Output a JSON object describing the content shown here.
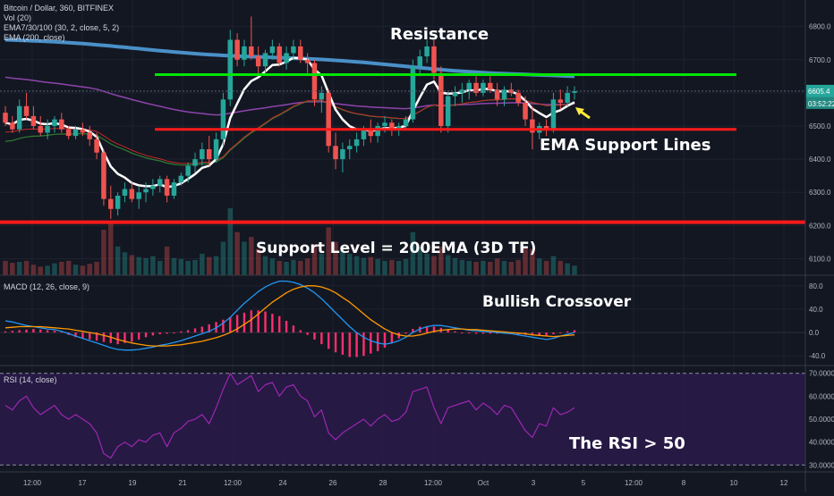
{
  "header": {
    "symbol_line": "Bitcoin / Dollar, 360, BITFINEX",
    "vol_line": "Vol (20)",
    "ema_ribbon_line": "EMA7/30/100 (30, 2, close, 5, 2)",
    "ema200_line": "EMA (200, close)"
  },
  "annotations": {
    "resistance": "Resistance",
    "ema_support": "EMA Support Lines",
    "support_level": "Support Level = 200EMA (3D TF)",
    "bullish_crossover": "Bullish Crossover",
    "rsi_note": "The RSI > 50"
  },
  "colors": {
    "background": "#131722",
    "up_candle": "#26a69a",
    "down_candle": "#ef5350",
    "resistance_line": "#00e600",
    "support_lines": "#ff1a1a",
    "ema200": "#4a90c8",
    "ema_white": "#ffffff",
    "ema_purple": "#8e44ad",
    "ema_green": "#2e7d32",
    "ema_red": "#c62828",
    "macd_line": "#2196f3",
    "signal_line": "#ff9800",
    "histogram": "#ff2e6e",
    "rsi_line": "#9c27b0",
    "rsi_band": "#2a1a4a",
    "arrow": "#ffeb3b",
    "price_tag": "#26a69a"
  },
  "chart_data": [
    {
      "type": "candlestick",
      "title": "Bitcoin / Dollar, 360, BITFINEX",
      "ylim": [
        6050,
        6880
      ],
      "yticks": [
        6100,
        6200,
        6300,
        6400,
        6500,
        6600,
        6700,
        6800
      ],
      "ytick_labels": [
        "6100.0",
        "6200.0",
        "6300.0",
        "6400.0",
        "6500.0",
        "6600.0",
        "6700.0",
        "6800.0"
      ],
      "last_price": "6605.4",
      "countdown": "03:52:22",
      "resistance_level": 6655,
      "ema_support_level": 6490,
      "support_level": 6210,
      "candles": [
        [
          6540,
          6560,
          6500,
          6510
        ],
        [
          6510,
          6530,
          6480,
          6490
        ],
        [
          6490,
          6580,
          6480,
          6560
        ],
        [
          6560,
          6600,
          6520,
          6530
        ],
        [
          6530,
          6560,
          6490,
          6500
        ],
        [
          6500,
          6530,
          6470,
          6480
        ],
        [
          6480,
          6520,
          6460,
          6500
        ],
        [
          6500,
          6530,
          6480,
          6520
        ],
        [
          6520,
          6540,
          6480,
          6490
        ],
        [
          6490,
          6500,
          6460,
          6470
        ],
        [
          6470,
          6500,
          6460,
          6490
        ],
        [
          6490,
          6510,
          6470,
          6480
        ],
        [
          6480,
          6500,
          6440,
          6460
        ],
        [
          6460,
          6480,
          6400,
          6420
        ],
        [
          6420,
          6430,
          6260,
          6280
        ],
        [
          6280,
          6320,
          6220,
          6250
        ],
        [
          6250,
          6300,
          6230,
          6290
        ],
        [
          6290,
          6330,
          6270,
          6310
        ],
        [
          6310,
          6330,
          6270,
          6280
        ],
        [
          6280,
          6320,
          6250,
          6300
        ],
        [
          6300,
          6330,
          6270,
          6310
        ],
        [
          6310,
          6340,
          6290,
          6320
        ],
        [
          6320,
          6350,
          6300,
          6340
        ],
        [
          6340,
          6350,
          6270,
          6290
        ],
        [
          6290,
          6340,
          6280,
          6330
        ],
        [
          6330,
          6360,
          6320,
          6350
        ],
        [
          6350,
          6390,
          6330,
          6380
        ],
        [
          6380,
          6420,
          6360,
          6400
        ],
        [
          6400,
          6450,
          6380,
          6430
        ],
        [
          6430,
          6470,
          6380,
          6400
        ],
        [
          6400,
          6480,
          6390,
          6460
        ],
        [
          6460,
          6600,
          6440,
          6580
        ],
        [
          6580,
          6790,
          6560,
          6760
        ],
        [
          6760,
          6780,
          6680,
          6700
        ],
        [
          6700,
          6760,
          6680,
          6740
        ],
        [
          6740,
          6830,
          6700,
          6710
        ],
        [
          6710,
          6740,
          6650,
          6680
        ],
        [
          6680,
          6730,
          6660,
          6720
        ],
        [
          6720,
          6760,
          6700,
          6740
        ],
        [
          6740,
          6750,
          6680,
          6690
        ],
        [
          6690,
          6740,
          6670,
          6720
        ],
        [
          6720,
          6760,
          6700,
          6740
        ],
        [
          6740,
          6760,
          6690,
          6700
        ],
        [
          6700,
          6720,
          6660,
          6690
        ],
        [
          6690,
          6700,
          6560,
          6580
        ],
        [
          6580,
          6620,
          6540,
          6600
        ],
        [
          6600,
          6610,
          6420,
          6440
        ],
        [
          6440,
          6480,
          6370,
          6400
        ],
        [
          6400,
          6450,
          6360,
          6430
        ],
        [
          6430,
          6460,
          6400,
          6440
        ],
        [
          6440,
          6480,
          6420,
          6460
        ],
        [
          6460,
          6500,
          6440,
          6490
        ],
        [
          6490,
          6520,
          6450,
          6470
        ],
        [
          6470,
          6510,
          6450,
          6500
        ],
        [
          6500,
          6530,
          6480,
          6510
        ],
        [
          6510,
          6520,
          6470,
          6490
        ],
        [
          6490,
          6510,
          6470,
          6500
        ],
        [
          6500,
          6530,
          6490,
          6520
        ],
        [
          6520,
          6700,
          6510,
          6680
        ],
        [
          6680,
          6730,
          6650,
          6710
        ],
        [
          6710,
          6760,
          6690,
          6740
        ],
        [
          6740,
          6760,
          6640,
          6660
        ],
        [
          6660,
          6680,
          6480,
          6500
        ],
        [
          6500,
          6600,
          6480,
          6590
        ],
        [
          6590,
          6620,
          6560,
          6600
        ],
        [
          6600,
          6630,
          6570,
          6610
        ],
        [
          6610,
          6640,
          6580,
          6630
        ],
        [
          6630,
          6650,
          6590,
          6600
        ],
        [
          6600,
          6640,
          6590,
          6630
        ],
        [
          6630,
          6650,
          6600,
          6610
        ],
        [
          6610,
          6630,
          6560,
          6580
        ],
        [
          6580,
          6620,
          6560,
          6610
        ],
        [
          6610,
          6630,
          6590,
          6600
        ],
        [
          6600,
          6610,
          6560,
          6570
        ],
        [
          6570,
          6590,
          6500,
          6520
        ],
        [
          6520,
          6560,
          6430,
          6480
        ],
        [
          6480,
          6510,
          6460,
          6500
        ],
        [
          6500,
          6520,
          6470,
          6490
        ],
        [
          6490,
          6600,
          6480,
          6580
        ],
        [
          6580,
          6610,
          6550,
          6570
        ],
        [
          6570,
          6620,
          6560,
          6600
        ],
        [
          6600,
          6620,
          6580,
          6605
        ]
      ],
      "volume": [
        30,
        26,
        28,
        30,
        22,
        18,
        20,
        25,
        28,
        30,
        22,
        20,
        24,
        28,
        95,
        110,
        60,
        48,
        42,
        38,
        36,
        40,
        30,
        60,
        36,
        34,
        30,
        32,
        45,
        38,
        40,
        70,
        140,
        90,
        70,
        80,
        55,
        40,
        35,
        30,
        28,
        32,
        30,
        35,
        65,
        45,
        100,
        70,
        50,
        45,
        40,
        36,
        38,
        34,
        30,
        32,
        30,
        34,
        90,
        60,
        45,
        40,
        60,
        42,
        36,
        32,
        30,
        28,
        30,
        28,
        35,
        30,
        28,
        32,
        60,
        55,
        35,
        30,
        40,
        30,
        25,
        20
      ]
    },
    {
      "type": "line",
      "title": "MACD (12, 26, close, 9)",
      "ylim": [
        -55,
        95
      ],
      "yticks": [
        -40,
        0,
        40,
        80
      ],
      "ytick_labels": [
        "-40.0",
        "0.0",
        "40.0",
        "80.0"
      ],
      "series": [
        {
          "values": [
            20,
            18,
            15,
            12,
            10,
            8,
            6,
            5,
            2,
            -2,
            -6,
            -10,
            -14,
            -18,
            -22,
            -26,
            -29,
            -30,
            -30,
            -29,
            -27,
            -25,
            -22,
            -20,
            -17,
            -14,
            -10,
            -6,
            -2,
            2,
            8,
            16,
            26,
            38,
            50,
            60,
            70,
            78,
            84,
            88,
            88,
            86,
            82,
            76,
            68,
            58,
            46,
            34,
            22,
            10,
            0,
            -8,
            -14,
            -18,
            -20,
            -18,
            -14,
            -8,
            0,
            6,
            10,
            12,
            12,
            10,
            8,
            6,
            4,
            3,
            2,
            1,
            0,
            -1,
            -2,
            -4,
            -6,
            -8,
            -10,
            -12,
            -10,
            -6,
            -3,
            0
          ]
        },
        {
          "values": [
            8,
            9,
            10,
            10,
            10,
            10,
            9,
            8,
            7,
            6,
            4,
            2,
            0,
            -2,
            -5,
            -8,
            -12,
            -15,
            -18,
            -20,
            -22,
            -23,
            -23,
            -23,
            -22,
            -21,
            -19,
            -17,
            -15,
            -12,
            -9,
            -5,
            0,
            6,
            14,
            22,
            32,
            42,
            52,
            60,
            68,
            74,
            78,
            80,
            80,
            78,
            74,
            68,
            60,
            52,
            42,
            32,
            22,
            14,
            6,
            0,
            -4,
            -6,
            -6,
            -4,
            -1,
            2,
            4,
            5,
            6,
            6,
            5,
            5,
            4,
            3,
            2,
            1,
            0,
            -1,
            -2,
            -4,
            -5,
            -6,
            -7,
            -6,
            -5,
            -4
          ]
        }
      ],
      "histogram": [
        2,
        3,
        4,
        5,
        6,
        5,
        4,
        3,
        2,
        -4,
        -8,
        -10,
        -12,
        -14,
        -16,
        -18,
        -20,
        -18,
        -16,
        -12,
        -8,
        -5,
        -3,
        -2,
        -1,
        2,
        4,
        7,
        10,
        14,
        18,
        22,
        26,
        30,
        34,
        38,
        38,
        36,
        32,
        28,
        20,
        12,
        4,
        -4,
        -12,
        -20,
        -28,
        -34,
        -38,
        -42,
        -42,
        -40,
        -36,
        -32,
        -26,
        -18,
        -10,
        -2,
        6,
        10,
        11,
        10,
        8,
        5,
        2,
        0,
        -1,
        -2,
        -2,
        -2,
        -2,
        -2,
        -2,
        -3,
        -4,
        -4,
        -5,
        -6,
        -3,
        0,
        2,
        4
      ]
    },
    {
      "type": "line",
      "title": "RSI (14, close)",
      "ylim": [
        27,
        73
      ],
      "yticks": [
        30,
        40,
        50,
        60,
        70
      ],
      "ytick_labels": [
        "30.0000",
        "40.0000",
        "50.0000",
        "60.0000",
        "70.0000"
      ],
      "series": [
        {
          "values": [
            56,
            54,
            58,
            60,
            55,
            52,
            54,
            56,
            52,
            50,
            52,
            50,
            48,
            44,
            35,
            33,
            38,
            40,
            38,
            41,
            40,
            43,
            44,
            38,
            44,
            46,
            49,
            50,
            52,
            48,
            55,
            63,
            70,
            65,
            67,
            69,
            62,
            65,
            66,
            60,
            64,
            65,
            60,
            58,
            51,
            54,
            44,
            41,
            44,
            46,
            48,
            50,
            47,
            50,
            52,
            49,
            50,
            53,
            62,
            63,
            64,
            55,
            48,
            55,
            56,
            57,
            58,
            54,
            57,
            55,
            52,
            56,
            55,
            50,
            45,
            42,
            48,
            47,
            55,
            52,
            53,
            55
          ]
        }
      ]
    }
  ],
  "x_axis": {
    "tick_labels": [
      "12:00",
      "17",
      "19",
      "21",
      "12:00",
      "24",
      "26",
      "28",
      "12:00",
      "Oct",
      "3",
      "5",
      "12:00",
      "8",
      "10",
      "12"
    ]
  }
}
